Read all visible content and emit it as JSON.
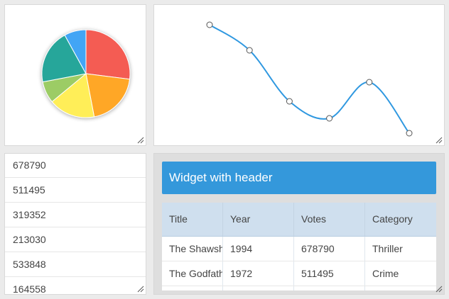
{
  "pie": {
    "slices": [
      {
        "value": 27,
        "color": "#f45b53"
      },
      {
        "value": 20,
        "color": "#ffa726"
      },
      {
        "value": 17,
        "color": "#ffee58"
      },
      {
        "value": 8,
        "color": "#9ccc65"
      },
      {
        "value": 20,
        "color": "#26a69a"
      },
      {
        "value": 8,
        "color": "#42a5f5"
      }
    ]
  },
  "line": {
    "color": "#2f98e0",
    "values": [
      94,
      82,
      58,
      50,
      67,
      43
    ],
    "ylim": [
      40,
      100
    ]
  },
  "list": {
    "items": [
      "678790",
      "511495",
      "319352",
      "213030",
      "533848",
      "164558"
    ]
  },
  "widget": {
    "header": "Widget with header",
    "columns": [
      "Title",
      "Year",
      "Votes",
      "Category"
    ],
    "rows": [
      [
        "The Shawshank Redemption",
        "1994",
        "678790",
        "Thriller"
      ],
      [
        "The Godfather",
        "1972",
        "511495",
        "Crime"
      ]
    ],
    "accent": "#3498db"
  }
}
